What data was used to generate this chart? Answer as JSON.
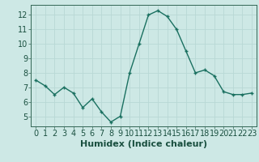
{
  "x": [
    0,
    1,
    2,
    3,
    4,
    5,
    6,
    7,
    8,
    9,
    10,
    11,
    12,
    13,
    14,
    15,
    16,
    17,
    18,
    19,
    20,
    21,
    22,
    23
  ],
  "y": [
    7.5,
    7.1,
    6.5,
    7.0,
    6.6,
    5.6,
    6.2,
    5.3,
    4.6,
    5.0,
    8.0,
    10.0,
    12.0,
    12.3,
    11.9,
    11.0,
    9.5,
    8.0,
    8.2,
    7.8,
    6.7,
    6.5,
    6.5,
    6.6
  ],
  "xlabel": "Humidex (Indice chaleur)",
  "xlim": [
    -0.5,
    23.5
  ],
  "ylim": [
    4.3,
    12.7
  ],
  "yticks": [
    5,
    6,
    7,
    8,
    9,
    10,
    11,
    12
  ],
  "xticks": [
    0,
    1,
    2,
    3,
    4,
    5,
    6,
    7,
    8,
    9,
    10,
    11,
    12,
    13,
    14,
    15,
    16,
    17,
    18,
    19,
    20,
    21,
    22,
    23
  ],
  "line_color": "#1a7060",
  "marker": "+",
  "marker_size": 3.5,
  "marker_lw": 1.0,
  "line_width": 1.0,
  "bg_color": "#cde8e5",
  "grid_color": "#b8d8d5",
  "xlabel_fontsize": 8,
  "tick_fontsize": 7
}
